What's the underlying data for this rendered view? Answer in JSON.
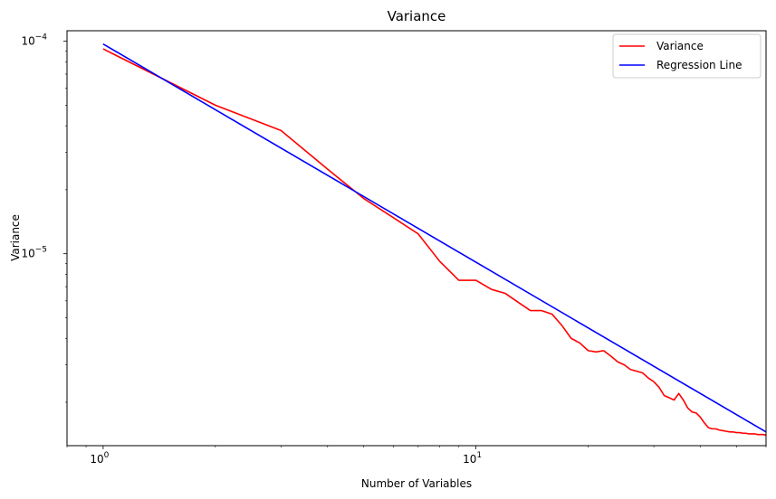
{
  "chart_data": {
    "type": "line",
    "title": "Variance",
    "xlabel": "Number of Variables",
    "ylabel": "Variance",
    "xscale": "log",
    "yscale": "log",
    "xlim": [
      0.8,
      60
    ],
    "ylim": [
      1.25e-06,
      0.000112
    ],
    "grid": false,
    "legend_position": "top-right",
    "x_ticks": [
      {
        "value": 1,
        "base": "10",
        "exp": "0"
      },
      {
        "value": 10,
        "base": "10",
        "exp": "1"
      }
    ],
    "y_ticks": [
      {
        "value": 1e-05,
        "base": "10",
        "exp": "−5"
      },
      {
        "value": 0.0001,
        "base": "10",
        "exp": "−4"
      }
    ],
    "series": [
      {
        "name": "Variance",
        "color": "#ff0000",
        "x": [
          1,
          2,
          3,
          4,
          5,
          6,
          7,
          8,
          9,
          10,
          11,
          12,
          13,
          14,
          15,
          16,
          17,
          18,
          19,
          20,
          21,
          22,
          23,
          24,
          25,
          26,
          27,
          28,
          29,
          30,
          31,
          32,
          33,
          34,
          35,
          36,
          37,
          38,
          39,
          40,
          41,
          42,
          43,
          44,
          45,
          46,
          47,
          48,
          49,
          50,
          51,
          52,
          53,
          54,
          55,
          56,
          57,
          58,
          59,
          60
        ],
        "y": [
          9.2e-05,
          5e-05,
          3.8e-05,
          2.5e-05,
          1.82e-05,
          1.48e-05,
          1.24e-05,
          9.2e-06,
          7.5e-06,
          7.5e-06,
          6.8e-06,
          6.5e-06,
          5.9e-06,
          5.4e-06,
          5.4e-06,
          5.2e-06,
          4.6e-06,
          4e-06,
          3.8e-06,
          3.5e-06,
          3.45e-06,
          3.5e-06,
          3.3e-06,
          3.1e-06,
          3e-06,
          2.85e-06,
          2.8e-06,
          2.75e-06,
          2.6e-06,
          2.5e-06,
          2.35e-06,
          2.15e-06,
          2.1e-06,
          2.05e-06,
          2.2e-06,
          2.05e-06,
          1.88e-06,
          1.8e-06,
          1.78e-06,
          1.7e-06,
          1.6e-06,
          1.52e-06,
          1.5e-06,
          1.5e-06,
          1.48e-06,
          1.47e-06,
          1.46e-06,
          1.45e-06,
          1.45e-06,
          1.44e-06,
          1.44e-06,
          1.43e-06,
          1.43e-06,
          1.42e-06,
          1.42e-06,
          1.42e-06,
          1.41e-06,
          1.41e-06,
          1.41e-06,
          1.4e-06
        ]
      },
      {
        "name": "Regression Line",
        "color": "#0000ff",
        "x": [
          1,
          60
        ],
        "y": [
          9.7e-05,
          1.45e-06
        ]
      }
    ]
  }
}
